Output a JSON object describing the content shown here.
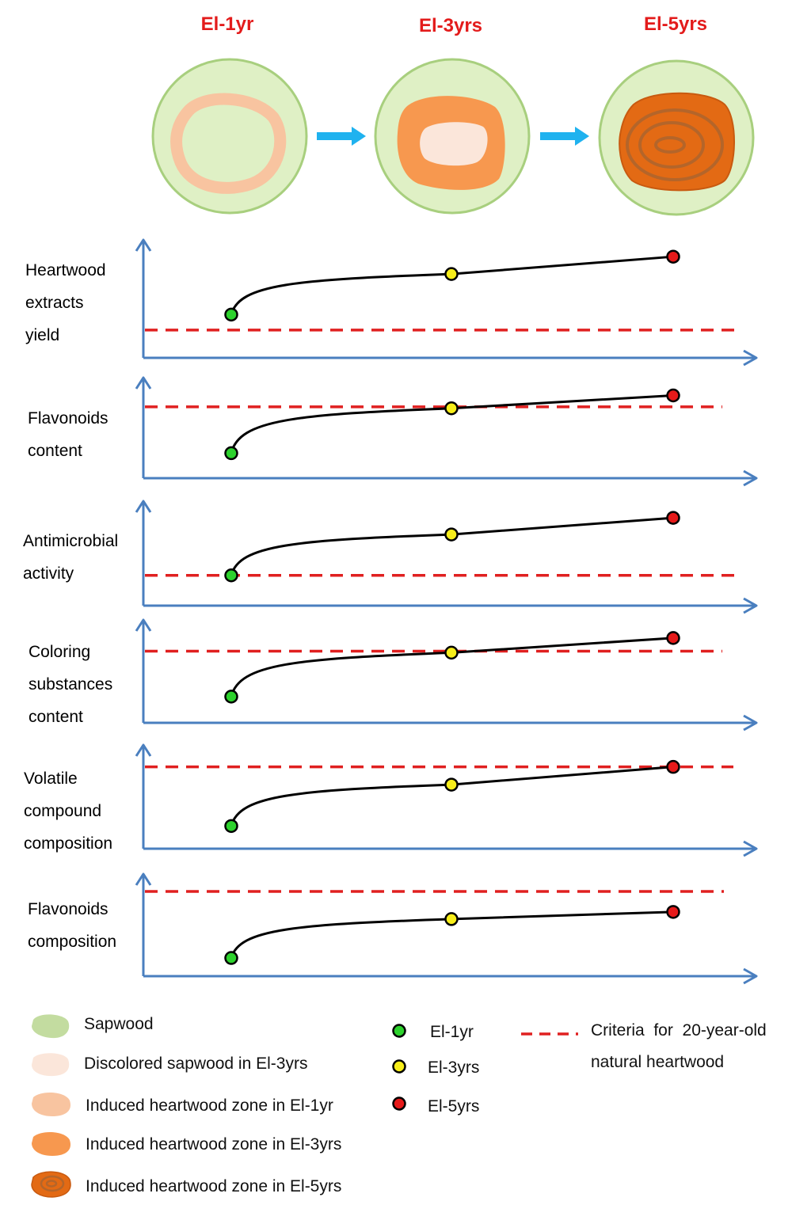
{
  "colors": {
    "title": "#e31b1b",
    "axis": "#4a7fbf",
    "curve": "#000000",
    "criteria": "#e02020",
    "arrow_between": "#1fb2ef",
    "sapwood": "#dff0c5",
    "sapwood_border": "#a8cf7e",
    "sapwood_swatch": "#c3dca0",
    "discolored_sapwood": "#fbe6da",
    "heartwood_1yr": "#f8c4a0",
    "heartwood_3yr": "#f7984f",
    "heartwood_5yr": "#e36a14",
    "heartwood_5yr_rings": "#b4652a",
    "dot_1yr": "#2dd22d",
    "dot_3yr": "#f7ee1a",
    "dot_5yr": "#e61a1a"
  },
  "top": {
    "stages": [
      {
        "title": "El-1yr",
        "zone": "ring"
      },
      {
        "title": "El-3yrs",
        "zone": "filled"
      },
      {
        "title": "El-5yrs",
        "zone": "rings"
      }
    ],
    "arrow_icon": "right-arrow-icon"
  },
  "chart_data": [
    {
      "type": "line",
      "title": "Heartwood extracts yield",
      "label_lines": [
        "Heartwood",
        "extracts",
        "yield"
      ],
      "x": [
        "El-1yr",
        "El-3yrs",
        "El-5yrs"
      ],
      "values": [
        0.1,
        0.73,
        1.0
      ],
      "criteria": -0.14,
      "ylim": [
        -0.45,
        1.15
      ]
    },
    {
      "type": "line",
      "title": "Flavonoids content",
      "label_lines": [
        "Flavonoids",
        "content"
      ],
      "x": [
        "El-1yr",
        "El-3yrs",
        "El-5yrs"
      ],
      "values": [
        0.19,
        0.82,
        1.0
      ],
      "criteria": 0.84,
      "ylim": [
        -0.05,
        1.15
      ]
    },
    {
      "type": "line",
      "title": "Antimicrobial activity",
      "label_lines": [
        "Antimicrobial",
        "activity"
      ],
      "x": [
        "El-1yr",
        "El-3yrs",
        "El-5yrs"
      ],
      "values": [
        0.1,
        0.74,
        1.0
      ],
      "criteria": 0.1,
      "ylim": [
        -0.25,
        1.15
      ]
    },
    {
      "type": "line",
      "title": "Coloring substances content",
      "label_lines": [
        "Coloring",
        "substances",
        "content"
      ],
      "x": [
        "El-1yr",
        "El-3yrs",
        "El-5yrs"
      ],
      "values": [
        0.2,
        0.8,
        1.0
      ],
      "criteria": 0.82,
      "ylim": [
        -0.05,
        1.15
      ]
    },
    {
      "type": "line",
      "title": "Volatile compound composition",
      "label_lines": [
        "Volatile",
        "compound",
        "composition"
      ],
      "x": [
        "El-1yr",
        "El-3yrs",
        "El-5yrs"
      ],
      "values": [
        0.2,
        0.76,
        1.0
      ],
      "criteria": 1.0,
      "ylim": [
        0.0,
        1.2
      ]
    },
    {
      "type": "line",
      "title": "Flavonoids composition",
      "label_lines": [
        "Flavonoids",
        "composition"
      ],
      "x": [
        "El-1yr",
        "El-3yrs",
        "El-5yrs"
      ],
      "values": [
        0.1,
        0.86,
        1.0
      ],
      "criteria": 1.4,
      "ylim": [
        -0.1,
        1.6
      ]
    }
  ],
  "legend": {
    "tissues": [
      {
        "key": "sapwood",
        "label": "Sapwood",
        "icon": "sapwood-swatch-icon"
      },
      {
        "key": "discolored_sapwood",
        "label": "Discolored sapwood in El-3yrs",
        "icon": "discolored-sapwood-swatch-icon"
      },
      {
        "key": "heartwood_1yr",
        "label": "Induced heartwood zone in El-1yr",
        "icon": "heartwood-1yr-swatch-icon"
      },
      {
        "key": "heartwood_3yr",
        "label": "Induced heartwood zone in El-3yrs",
        "icon": "heartwood-3yr-swatch-icon"
      },
      {
        "key": "heartwood_5yr",
        "label": "Induced heartwood zone in El-5yrs",
        "icon": "heartwood-5yr-swatch-icon"
      }
    ],
    "points": [
      {
        "key": "dot_1yr",
        "label": "El-1yr"
      },
      {
        "key": "dot_3yr",
        "label": "El-3yrs"
      },
      {
        "key": "dot_5yr",
        "label": "El-5yrs"
      }
    ],
    "criteria": {
      "line1": "Criteria  for  20-year-old",
      "line2": "natural heartwood"
    }
  }
}
